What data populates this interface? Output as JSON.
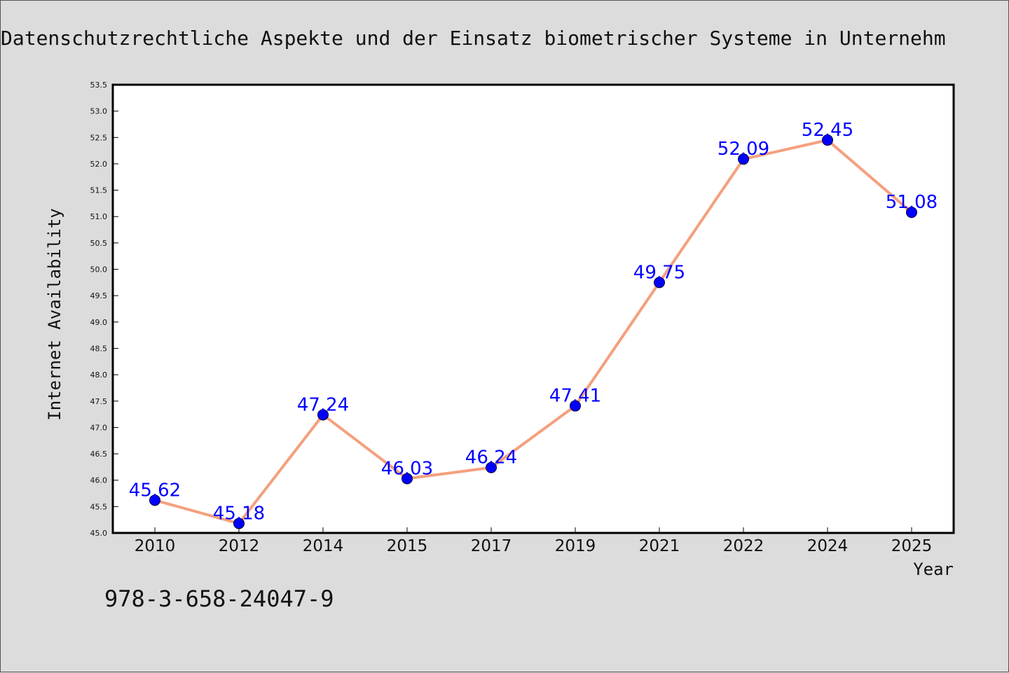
{
  "chart_data": {
    "type": "line",
    "title": "Datenschutzrechtliche Aspekte und der Einsatz biometrischer Systeme in Unternehm",
    "xlabel": "Year",
    "ylabel": "Internet Availability",
    "categories": [
      "2010",
      "2012",
      "2014",
      "2015",
      "2017",
      "2019",
      "2021",
      "2022",
      "2024",
      "2025"
    ],
    "values": [
      45.62,
      45.18,
      47.24,
      46.03,
      46.24,
      47.41,
      49.75,
      52.09,
      52.45,
      51.08
    ],
    "data_labels": [
      "45.62",
      "45.18",
      "47.24",
      "46.03",
      "46.24",
      "47.41",
      "49.75",
      "52.09",
      "52.45",
      "51.08"
    ],
    "ylim": [
      45.0,
      53.5
    ],
    "yticks": [
      "45.0",
      "45.5",
      "46.0",
      "46.5",
      "47.0",
      "47.5",
      "48.0",
      "48.5",
      "49.0",
      "49.5",
      "50.0",
      "50.5",
      "51.0",
      "51.5",
      "52.0",
      "52.5",
      "53.0",
      "53.5"
    ],
    "grid": false,
    "line_color": "#f4a07e",
    "marker_color": "#0000ff",
    "label_color": "#0000ff"
  },
  "footer": {
    "isbn": "978-3-658-24047-9"
  }
}
